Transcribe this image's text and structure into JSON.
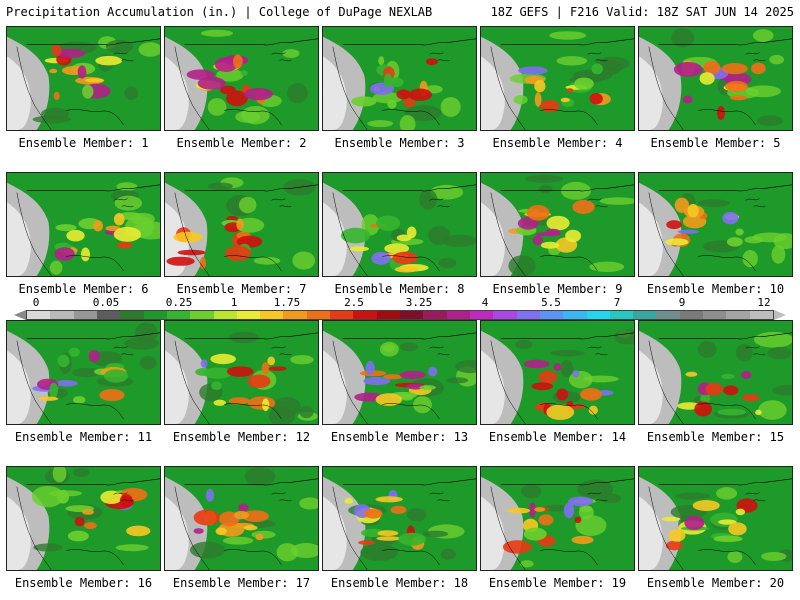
{
  "header": {
    "title": "Precipitation Accumulation (in.) | College of DuPage NEXLAB",
    "valid": "18Z GEFS | F216 Valid: 18Z SAT JUN 14 2025"
  },
  "colorbar": {
    "labels": [
      "0",
      "0.05",
      "0.25",
      "1",
      "1.75",
      "2.5",
      "3.25",
      "4",
      "5.5",
      "7",
      "9",
      "12"
    ],
    "colors": [
      "#d9d9d9",
      "#b9b9b9",
      "#979797",
      "#5c5c5c",
      "#2d7a2d",
      "#1e9a2a",
      "#35b52f",
      "#6ccf2e",
      "#b8e62e",
      "#e9ec32",
      "#f7c823",
      "#f29a1c",
      "#ef6f16",
      "#e83a14",
      "#cf1010",
      "#a00c12",
      "#7f0e2a",
      "#9a1a5a",
      "#b1208a",
      "#c128c0",
      "#a948e6",
      "#7f6ff2",
      "#5c93f6",
      "#39b6f4",
      "#23d6f0",
      "#25c9c0",
      "#3aa6a0",
      "#6f8f8f",
      "#7a7a7a",
      "#8e8e8e",
      "#a4a4a4",
      "#bdbdbd"
    ]
  },
  "members": [
    {
      "label": "Ensemble Member: 1"
    },
    {
      "label": "Ensemble Member: 2"
    },
    {
      "label": "Ensemble Member: 3"
    },
    {
      "label": "Ensemble Member: 4"
    },
    {
      "label": "Ensemble Member: 5"
    },
    {
      "label": "Ensemble Member: 6"
    },
    {
      "label": "Ensemble Member: 7"
    },
    {
      "label": "Ensemble Member: 8"
    },
    {
      "label": "Ensemble Member: 9"
    },
    {
      "label": "Ensemble Member: 10"
    },
    {
      "label": "Ensemble Member: 11"
    },
    {
      "label": "Ensemble Member: 12"
    },
    {
      "label": "Ensemble Member: 13"
    },
    {
      "label": "Ensemble Member: 14"
    },
    {
      "label": "Ensemble Member: 15"
    },
    {
      "label": "Ensemble Member: 16"
    },
    {
      "label": "Ensemble Member: 17"
    },
    {
      "label": "Ensemble Member: 18"
    },
    {
      "label": "Ensemble Member: 19"
    },
    {
      "label": "Ensemble Member: 20"
    }
  ]
}
